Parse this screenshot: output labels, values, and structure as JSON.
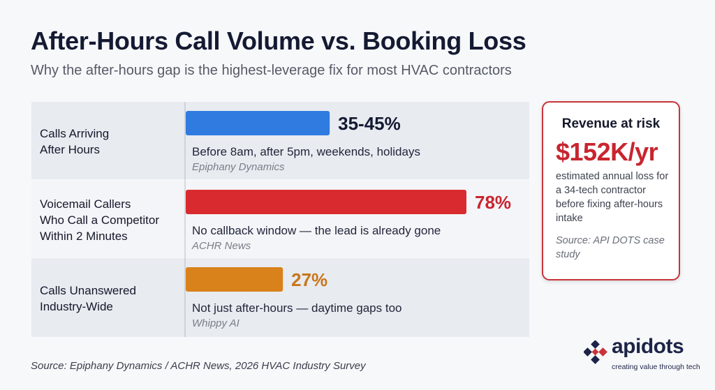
{
  "title": "After-Hours Call Volume vs. Booking Loss",
  "subtitle": "Why the after-hours gap is the highest-leverage fix for most HVAC contractors",
  "chart_data": {
    "type": "bar",
    "orientation": "horizontal",
    "categories": [
      "Calls Arriving After Hours",
      "Voicemail Callers Who Call a Competitor Within 2 Minutes",
      "Calls Unanswered Industry-Wide"
    ],
    "category_lines": [
      [
        "Calls Arriving",
        "After Hours"
      ],
      [
        "Voicemail Callers",
        "Who Call a Competitor",
        "Within 2 Minutes"
      ],
      [
        "Calls Unanswered",
        "Industry-Wide"
      ]
    ],
    "values": [
      40,
      78,
      27
    ],
    "value_labels": [
      "35-45%",
      "78%",
      "27%"
    ],
    "descriptions": [
      "Before 8am, after 5pm, weekends, holidays",
      "No callback window — the lead is already gone",
      "Not just after-hours — daytime gaps too"
    ],
    "sources": [
      "Epiphany Dynamics",
      "ACHR News",
      "Whippy AI"
    ],
    "bar_colors": [
      "#2f7be0",
      "#d92b2f",
      "#d9811a"
    ],
    "value_label_colors": [
      "#151a33",
      "#c8252f",
      "#c8761a"
    ],
    "xlim": [
      0,
      100
    ],
    "grid": false,
    "legend": "none"
  },
  "risk_card": {
    "title": "Revenue at risk",
    "amount": "$152K/yr",
    "description": "estimated annual loss for a 34-tech contractor before fixing after-hours intake",
    "source": "Source: API DOTS case study"
  },
  "footer_source": "Source: Epiphany Dynamics / ACHR News, 2026 HVAC Industry Survey",
  "logo": {
    "wordmark": "apidots",
    "tagline": "creating value through tech",
    "colors": [
      "#1c2447",
      "#c8343a"
    ]
  }
}
